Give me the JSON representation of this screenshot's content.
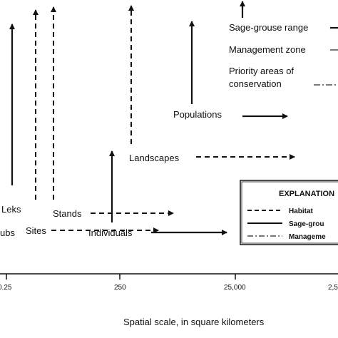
{
  "figure": {
    "x_axis": {
      "label": "Spatial scale, in square kilometers",
      "ticks": [
        "0.25",
        "250",
        "25,000",
        "2,5"
      ]
    },
    "labels": {
      "leks": "Leks",
      "stands": "Stands",
      "sites": "Sites",
      "ubs": "ubs",
      "individuals": "Individuals",
      "landscapes": "Landscapes",
      "populations": "Populations"
    },
    "top_legend": {
      "range": "Sage-grouse range",
      "management_zone": "Management zone",
      "priority_line1": "Priority areas of",
      "priority_line2": "conservation"
    },
    "explanation": {
      "title": "EXPLANATION",
      "habitat": "Habitat",
      "sage_grouse": "Sage-grou",
      "management": "Manageme"
    },
    "line_styles": {
      "habitat": "dashed",
      "sage_grouse": "solid",
      "management": "dash-dot"
    }
  }
}
